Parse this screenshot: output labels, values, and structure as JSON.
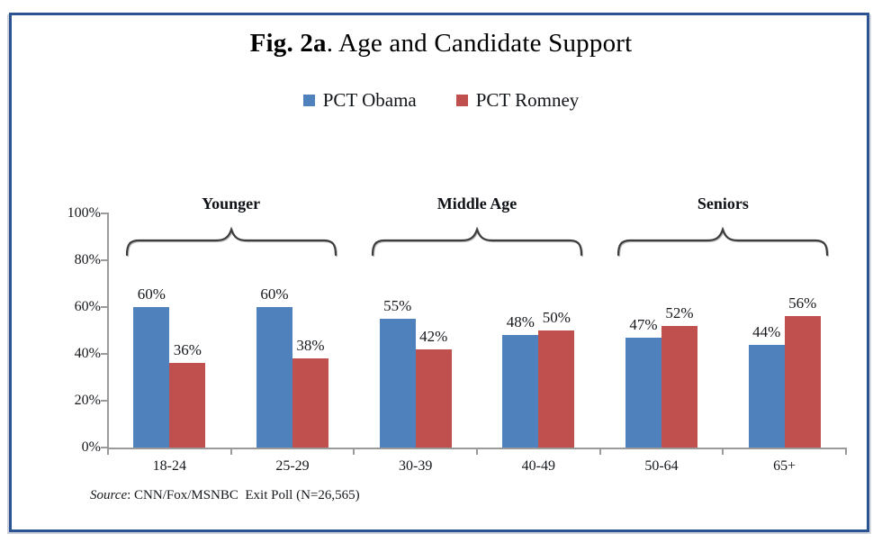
{
  "figure": {
    "title_bold": "Fig. 2a",
    "title_rest": ". Age and Candidate Support"
  },
  "legend": [
    {
      "name": "pct-obama",
      "label": "PCT Obama",
      "color": "#4F81BD"
    },
    {
      "name": "pct-romney",
      "label": "PCT Romney",
      "color": "#C0504D"
    }
  ],
  "source": {
    "label": "Source",
    "text": ": CNN/Fox/MSNBC  Exit Poll (N=26,565)"
  },
  "chart_data": {
    "type": "bar",
    "title": "Fig. 2a. Age and Candidate Support",
    "categories": [
      "18-24",
      "25-29",
      "30-39",
      "40-49",
      "50-64",
      "65+"
    ],
    "series": [
      {
        "name": "PCT Obama",
        "color": "#4F81BD",
        "values": [
          60,
          60,
          55,
          48,
          47,
          44
        ]
      },
      {
        "name": "PCT Romney",
        "color": "#C0504D",
        "values": [
          36,
          38,
          42,
          50,
          52,
          56
        ]
      }
    ],
    "data_label_format": "{v}%",
    "groups": [
      {
        "label": "Younger",
        "categories": [
          0,
          1
        ]
      },
      {
        "label": "Middle Age",
        "categories": [
          2,
          3
        ]
      },
      {
        "label": "Seniors",
        "categories": [
          4,
          5
        ]
      }
    ],
    "yticks": [
      {
        "value": 0,
        "label": "0%"
      },
      {
        "value": 20,
        "label": "20%"
      },
      {
        "value": 40,
        "label": "40%"
      },
      {
        "value": 60,
        "label": "60%"
      },
      {
        "value": 80,
        "label": "80%"
      },
      {
        "value": 100,
        "label": "100%"
      }
    ],
    "ylim": [
      0,
      100
    ],
    "xlabel": "",
    "ylabel": "",
    "grid": false,
    "legend_position": "top"
  }
}
